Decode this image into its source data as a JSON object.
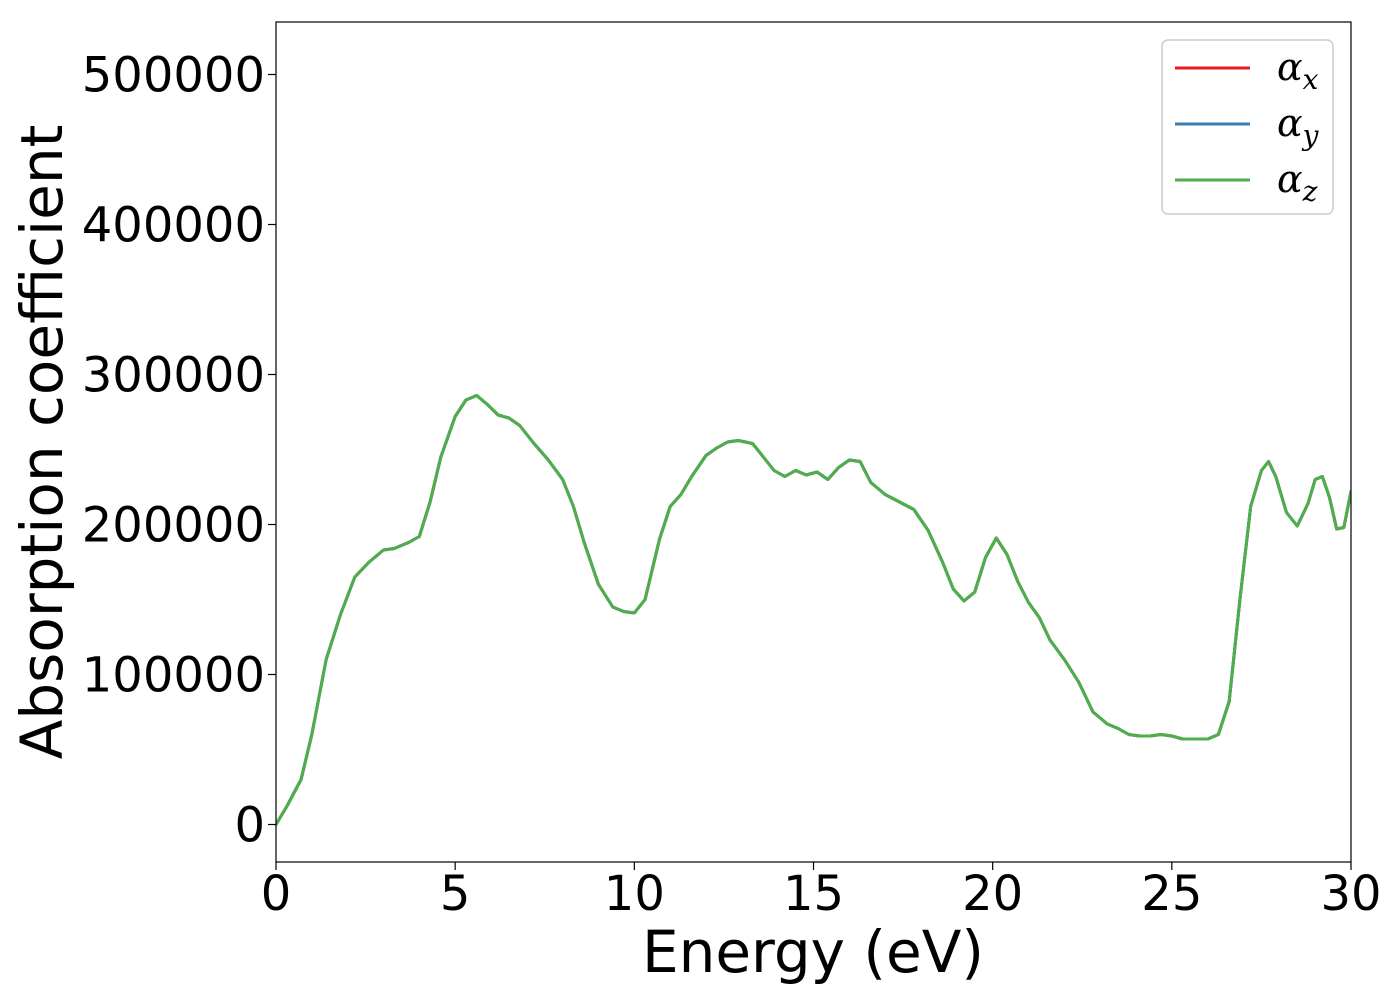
{
  "chart_data": {
    "type": "line",
    "title": "",
    "xlabel": "Energy (eV)",
    "ylabel": "Absorption coefficient",
    "xlim": [
      0,
      30
    ],
    "ylim": [
      -25000,
      535000
    ],
    "xticks": [
      0,
      5,
      10,
      15,
      20,
      25,
      30
    ],
    "yticks": [
      0,
      100000,
      200000,
      300000,
      400000,
      500000
    ],
    "grid": false,
    "legend_position": "top-right",
    "x": [
      0,
      0.3,
      0.7,
      1.0,
      1.4,
      1.8,
      2.2,
      2.6,
      3.0,
      3.3,
      3.7,
      4.0,
      4.3,
      4.6,
      5.0,
      5.3,
      5.6,
      5.9,
      6.2,
      6.5,
      6.8,
      7.2,
      7.6,
      8.0,
      8.3,
      8.6,
      9.0,
      9.4,
      9.7,
      10.0,
      10.3,
      10.7,
      11.0,
      11.3,
      11.6,
      12.0,
      12.3,
      12.6,
      12.9,
      13.3,
      13.6,
      13.9,
      14.2,
      14.5,
      14.8,
      15.1,
      15.4,
      15.7,
      16.0,
      16.3,
      16.6,
      17.0,
      17.4,
      17.8,
      18.2,
      18.6,
      18.9,
      19.2,
      19.5,
      19.8,
      20.1,
      20.4,
      20.7,
      21.0,
      21.3,
      21.6,
      22.0,
      22.4,
      22.8,
      23.2,
      23.5,
      23.8,
      24.1,
      24.4,
      24.7,
      25.0,
      25.3,
      25.6,
      26.0,
      26.3,
      26.6,
      26.9,
      27.2,
      27.5,
      27.7,
      27.9,
      28.2,
      28.5,
      28.8,
      29.0,
      29.2,
      29.4,
      29.6,
      29.8,
      30.0
    ],
    "series": [
      {
        "name": "α_x",
        "color": "#e41a1c",
        "values": [
          0,
          12000,
          30000,
          60000,
          110000,
          140000,
          165000,
          175000,
          183000,
          184000,
          188000,
          192000,
          215000,
          245000,
          272000,
          283000,
          286000,
          280000,
          273000,
          271000,
          266000,
          254000,
          243000,
          230000,
          212000,
          188000,
          160000,
          145000,
          142000,
          141000,
          150000,
          190000,
          212000,
          220000,
          232000,
          246000,
          251000,
          255000,
          256000,
          254000,
          245000,
          236000,
          232000,
          236000,
          233000,
          235000,
          230000,
          238000,
          243000,
          242000,
          228000,
          220000,
          215000,
          210000,
          196000,
          175000,
          157000,
          149000,
          155000,
          178000,
          191000,
          180000,
          162000,
          148000,
          138000,
          123000,
          110000,
          95000,
          75000,
          67000,
          64000,
          60000,
          59000,
          59000,
          60000,
          59000,
          57000,
          57000,
          57000,
          60000,
          82000,
          150000,
          212000,
          236000,
          242000,
          232000,
          208000,
          199000,
          214000,
          230000,
          232000,
          218000,
          197000,
          198000,
          222000
        ]
      },
      {
        "name": "α_y",
        "color": "#377eb8",
        "values": [
          0,
          12000,
          30000,
          60000,
          110000,
          140000,
          165000,
          175000,
          183000,
          184000,
          188000,
          192000,
          215000,
          245000,
          272000,
          283000,
          286000,
          280000,
          273000,
          271000,
          266000,
          254000,
          243000,
          230000,
          212000,
          188000,
          160000,
          145000,
          142000,
          141000,
          150000,
          190000,
          212000,
          220000,
          232000,
          246000,
          251000,
          255000,
          256000,
          254000,
          245000,
          236000,
          232000,
          236000,
          233000,
          235000,
          230000,
          238000,
          243000,
          242000,
          228000,
          220000,
          215000,
          210000,
          196000,
          175000,
          157000,
          149000,
          155000,
          178000,
          191000,
          180000,
          162000,
          148000,
          138000,
          123000,
          110000,
          95000,
          75000,
          67000,
          64000,
          60000,
          59000,
          59000,
          60000,
          59000,
          57000,
          57000,
          57000,
          60000,
          82000,
          150000,
          212000,
          236000,
          242000,
          232000,
          208000,
          199000,
          214000,
          230000,
          232000,
          218000,
          197000,
          198000,
          222000
        ]
      },
      {
        "name": "α_z",
        "color": "#4daf4a",
        "values": [
          0,
          12000,
          30000,
          60000,
          110000,
          140000,
          165000,
          175000,
          183000,
          184000,
          188000,
          192000,
          215000,
          245000,
          272000,
          283000,
          286000,
          280000,
          273000,
          271000,
          266000,
          254000,
          243000,
          230000,
          212000,
          188000,
          160000,
          145000,
          142000,
          141000,
          150000,
          190000,
          212000,
          220000,
          232000,
          246000,
          251000,
          255000,
          256000,
          254000,
          245000,
          236000,
          232000,
          236000,
          233000,
          235000,
          230000,
          238000,
          243000,
          242000,
          228000,
          220000,
          215000,
          210000,
          196000,
          175000,
          157000,
          149000,
          155000,
          178000,
          191000,
          180000,
          162000,
          148000,
          138000,
          123000,
          110000,
          95000,
          75000,
          67000,
          64000,
          60000,
          59000,
          59000,
          60000,
          59000,
          57000,
          57000,
          57000,
          60000,
          82000,
          150000,
          212000,
          236000,
          242000,
          232000,
          208000,
          199000,
          214000,
          230000,
          232000,
          218000,
          197000,
          198000,
          222000
        ]
      }
    ],
    "legend": [
      {
        "main": "α",
        "sub": "x"
      },
      {
        "main": "α",
        "sub": "y"
      },
      {
        "main": "α",
        "sub": "z"
      }
    ],
    "xtick_labels": [
      "0",
      "5",
      "10",
      "15",
      "20",
      "25",
      "30"
    ],
    "ytick_labels": [
      "0",
      "100000",
      "200000",
      "300000",
      "400000",
      "500000"
    ]
  }
}
